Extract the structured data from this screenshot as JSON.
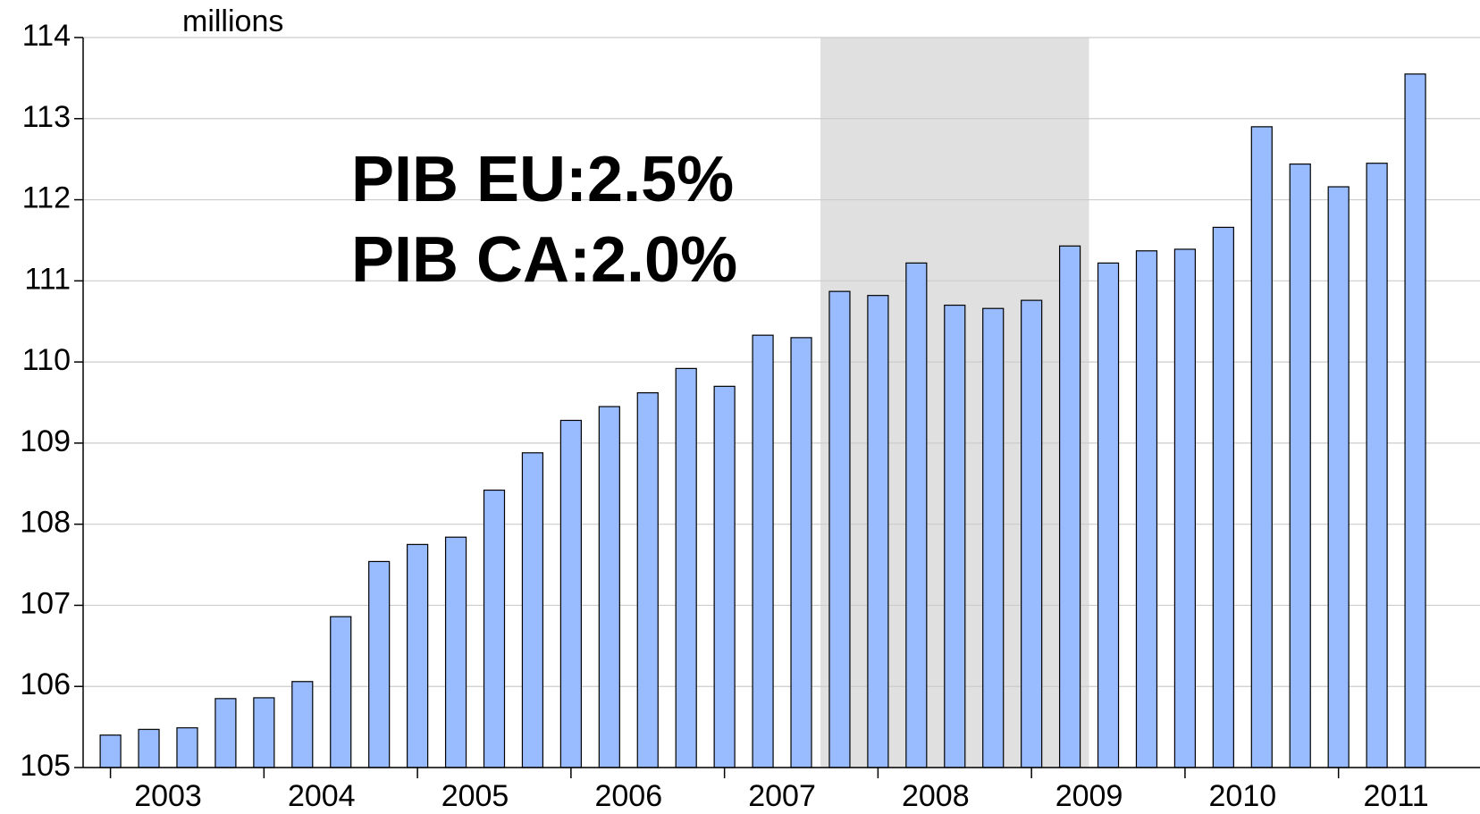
{
  "chart_data": {
    "type": "bar",
    "unit_label": "millions",
    "annotations": [
      "PIB EU:2.5%",
      "PIB CA:2.0%"
    ],
    "categories": [
      "2003",
      null,
      null,
      null,
      "2004",
      null,
      null,
      null,
      "2005",
      null,
      null,
      null,
      "2006",
      null,
      null,
      null,
      "2007",
      null,
      null,
      null,
      "2008",
      null,
      null,
      null,
      "2009",
      null,
      null,
      null,
      "2010",
      null,
      null,
      null,
      "2011",
      null,
      null
    ],
    "values": [
      105.4,
      105.47,
      105.49,
      105.85,
      105.86,
      106.06,
      106.86,
      107.54,
      107.75,
      107.84,
      108.42,
      108.88,
      109.28,
      109.45,
      109.62,
      109.92,
      109.7,
      110.33,
      110.3,
      110.87,
      110.82,
      111.22,
      110.7,
      110.66,
      110.76,
      111.43,
      111.22,
      111.37,
      111.39,
      111.66,
      112.9,
      112.44,
      112.16,
      112.45,
      113.55
    ],
    "color": "#99bbff",
    "ylim": [
      105,
      114
    ],
    "yticks": [
      105,
      106,
      107,
      108,
      109,
      110,
      111,
      112,
      113,
      114
    ],
    "grid": true,
    "shaded_range": {
      "start": 19,
      "end": 25,
      "color": "#e0e0e0"
    }
  }
}
